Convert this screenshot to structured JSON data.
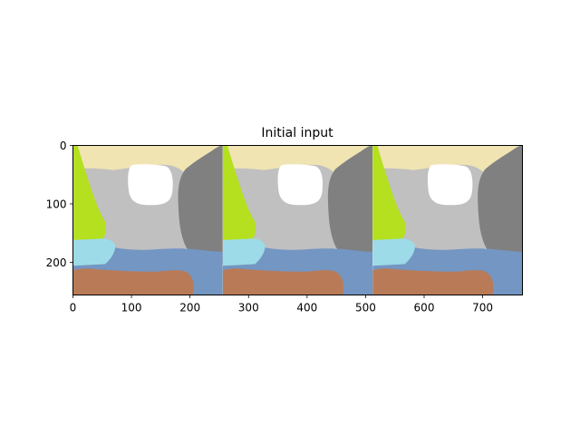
{
  "chart_data": {
    "type": "image",
    "title": "Initial input",
    "xlabel": "",
    "ylabel": "",
    "xlim": [
      0,
      768
    ],
    "ylim": [
      256,
      0
    ],
    "grid": false,
    "x_ticks": [
      0,
      100,
      200,
      300,
      400,
      500,
      600,
      700
    ],
    "y_ticks": [
      0,
      100,
      200
    ],
    "panels": 3,
    "panel_width": 256,
    "panel_height": 256,
    "segment_colors": {
      "background": "#f0e4b2",
      "left_green": "#b4e01f",
      "center_gray": "#c0c0c0",
      "white_blob": "#ffffff",
      "dark_gray": "#808080",
      "light_blue": "#9ddbe9",
      "steel_blue": "#7396c3",
      "brown": "#b97b57"
    }
  }
}
